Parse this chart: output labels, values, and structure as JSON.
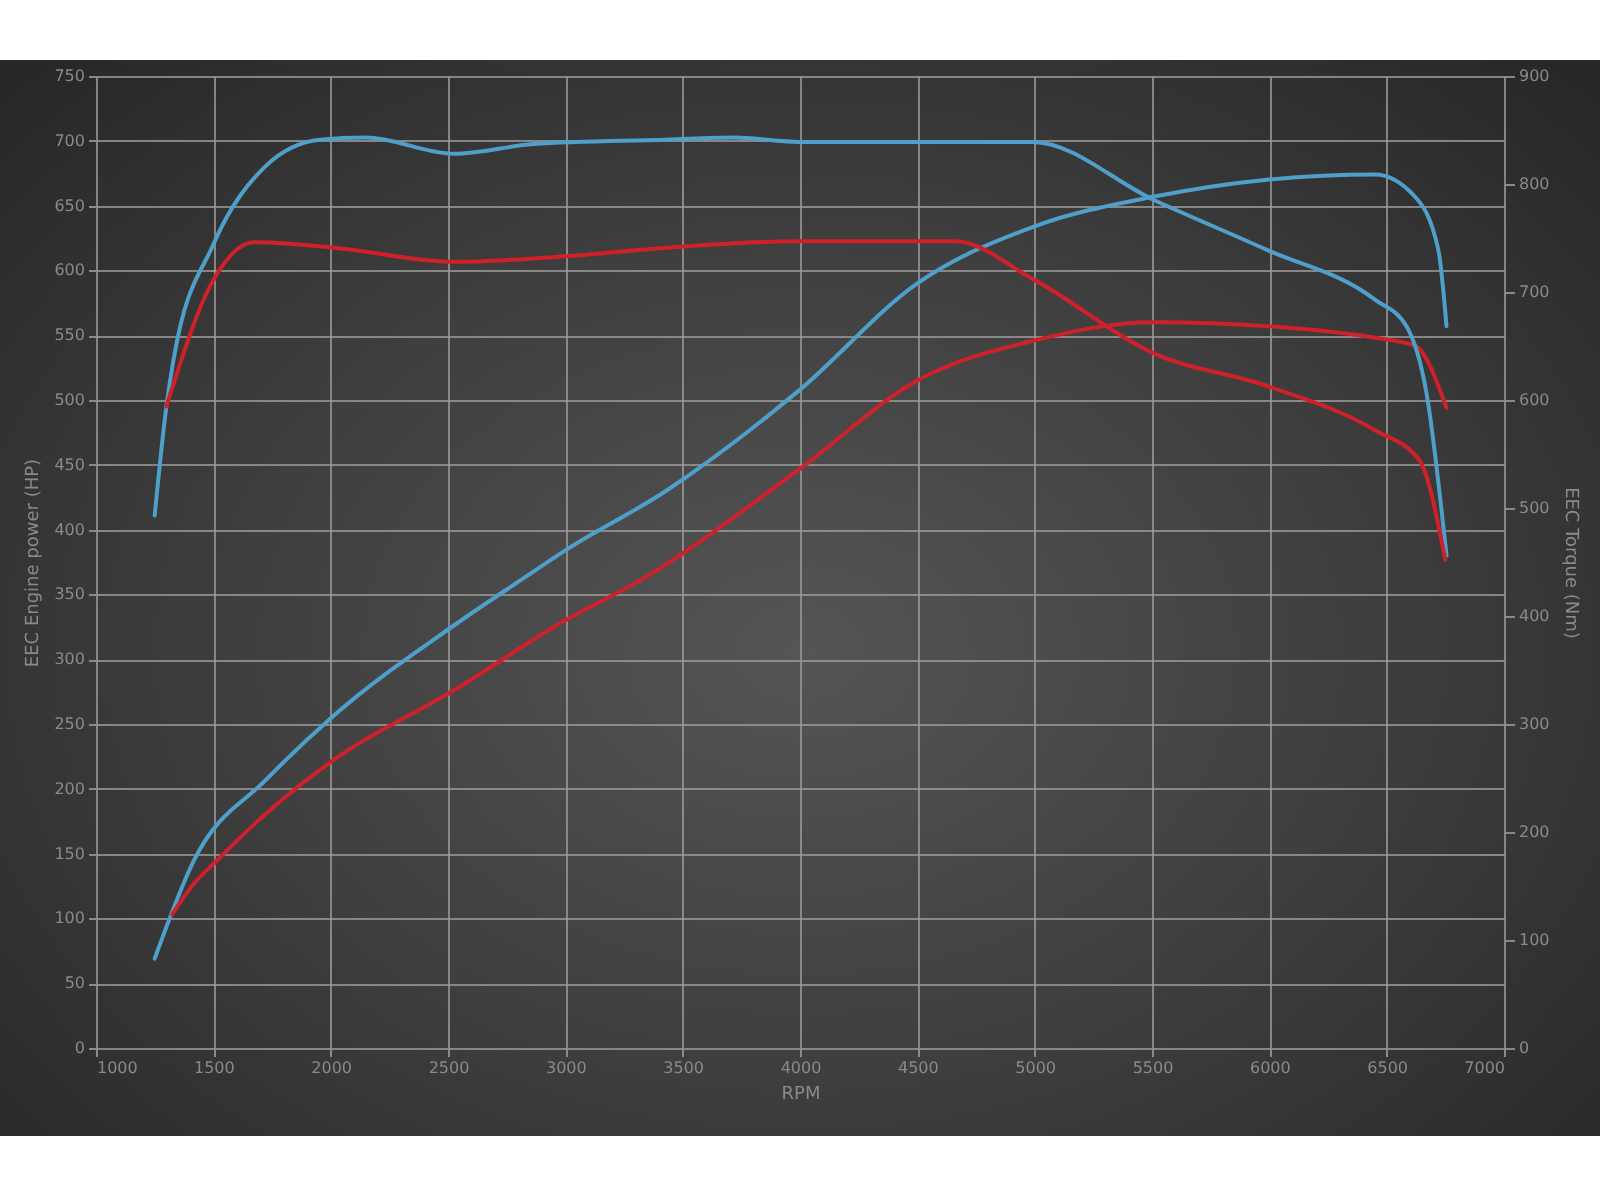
{
  "chart_data": {
    "type": "line",
    "xlabel": "RPM",
    "ylabel": "EEC Engine power (HP)",
    "y2label": "EEC Torque (Nm)",
    "xlim": [
      1000,
      7000
    ],
    "xticks": [
      1000,
      1500,
      2000,
      2500,
      3000,
      3500,
      4000,
      4500,
      5000,
      5500,
      6000,
      6500,
      7000
    ],
    "ylim": [
      0,
      750
    ],
    "yticks": [
      0,
      50,
      100,
      150,
      200,
      250,
      300,
      350,
      400,
      450,
      500,
      550,
      600,
      650,
      700,
      750
    ],
    "y2lim": [
      0,
      900
    ],
    "y2ticks": [
      0,
      100,
      200,
      300,
      400,
      500,
      600,
      700,
      800,
      900
    ],
    "grid": true,
    "series": [
      {
        "color": "#4f9fcb",
        "x": [
          1250,
          1418,
          1725,
          2010,
          2525,
          2810,
          3000,
          3430,
          4000,
          4500,
          5000,
          5510,
          5990,
          6450,
          6620,
          6720,
          6755
        ],
        "values": [
          69,
          145,
          207,
          256,
          326,
          361,
          384,
          430,
          508,
          590,
          634,
          657,
          670,
          674,
          657,
          616,
          557
        ]
      },
      {
        "color": "#d0202a",
        "x": [
          1324,
          1418,
          1500,
          1725,
          2010,
          2525,
          3000,
          3320,
          4000,
          4500,
          5000,
          5510,
          5990,
          6450,
          6620,
          6755
        ],
        "values": [
          103,
          127,
          142,
          181,
          222,
          276,
          330,
          361,
          447,
          515,
          546,
          560,
          557,
          548,
          542,
          494
        ]
      },
      {
        "color": "#4f9fcb",
        "axis": "y2",
        "x": [
          1250,
          1300,
          1330,
          1500,
          1725,
          1955,
          2150,
          2525,
          2865,
          3430,
          3720,
          4000,
          4990,
          5510,
          5990,
          6450,
          6585,
          6670,
          6755
        ],
        "values": [
          493,
          594,
          637,
          744,
          817,
          841,
          843,
          828,
          837,
          841,
          843,
          839,
          839,
          785,
          739,
          693,
          668,
          606,
          456
        ]
      },
      {
        "color": "#d0202a",
        "axis": "y2",
        "x": [
          1300,
          1500,
          1673,
          2014,
          2525,
          3000,
          3430,
          4000,
          4660,
          5000,
          5510,
          5990,
          6450,
          6640,
          6750
        ],
        "values": [
          594,
          711,
          746,
          741,
          728,
          733,
          741,
          747,
          747,
          711,
          643,
          613,
          572,
          544,
          452
        ]
      }
    ]
  }
}
